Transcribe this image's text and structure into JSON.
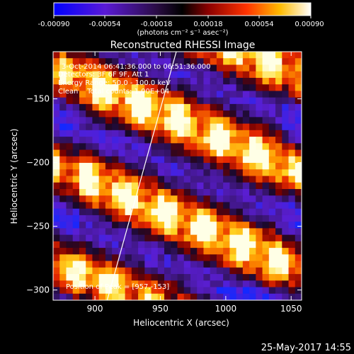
{
  "chart_data": {
    "type": "heatmap",
    "title": "Reconstructed RHESSI Image",
    "xlabel": "Heliocentric X (arcsec)",
    "ylabel": "Heliocentric Y (arcsec)",
    "xlim": [
      868,
      1058
    ],
    "ylim": [
      -308,
      -113
    ],
    "x_ticks": [
      900,
      950,
      1000,
      1050
    ],
    "y_ticks": [
      -150,
      -200,
      -250,
      -300
    ],
    "colorbar": {
      "range": [
        -0.0009,
        0.0009
      ],
      "ticks": [
        "-0.00090",
        "-0.00054",
        "-0.00018",
        "0.00018",
        "0.00054",
        "0.00090"
      ],
      "units_label": "(photons cm⁻² s⁻¹ asec⁻²)",
      "colormap": "blue-purple-black-red-orange-yellow-white"
    },
    "annotations": {
      "time_range": "3-Oct-2014 06:41:36.000 to 06:51:36.000",
      "detectors": "Detectors: 3F 6F 9F, Att 1",
      "energy": "Energy Range: 50.0 - 100.0 keV",
      "clean": "Clean    Total counts: 1.00E+04",
      "peak": "Position of Peak = [957,-153]"
    },
    "peak": {
      "x": 957,
      "y": -153
    },
    "limb_line": {
      "x1": 908,
      "y1": -313,
      "x2": 963,
      "y2": -110
    },
    "grid": false
  },
  "footer": {
    "date": "25-May-2017 14:55"
  }
}
